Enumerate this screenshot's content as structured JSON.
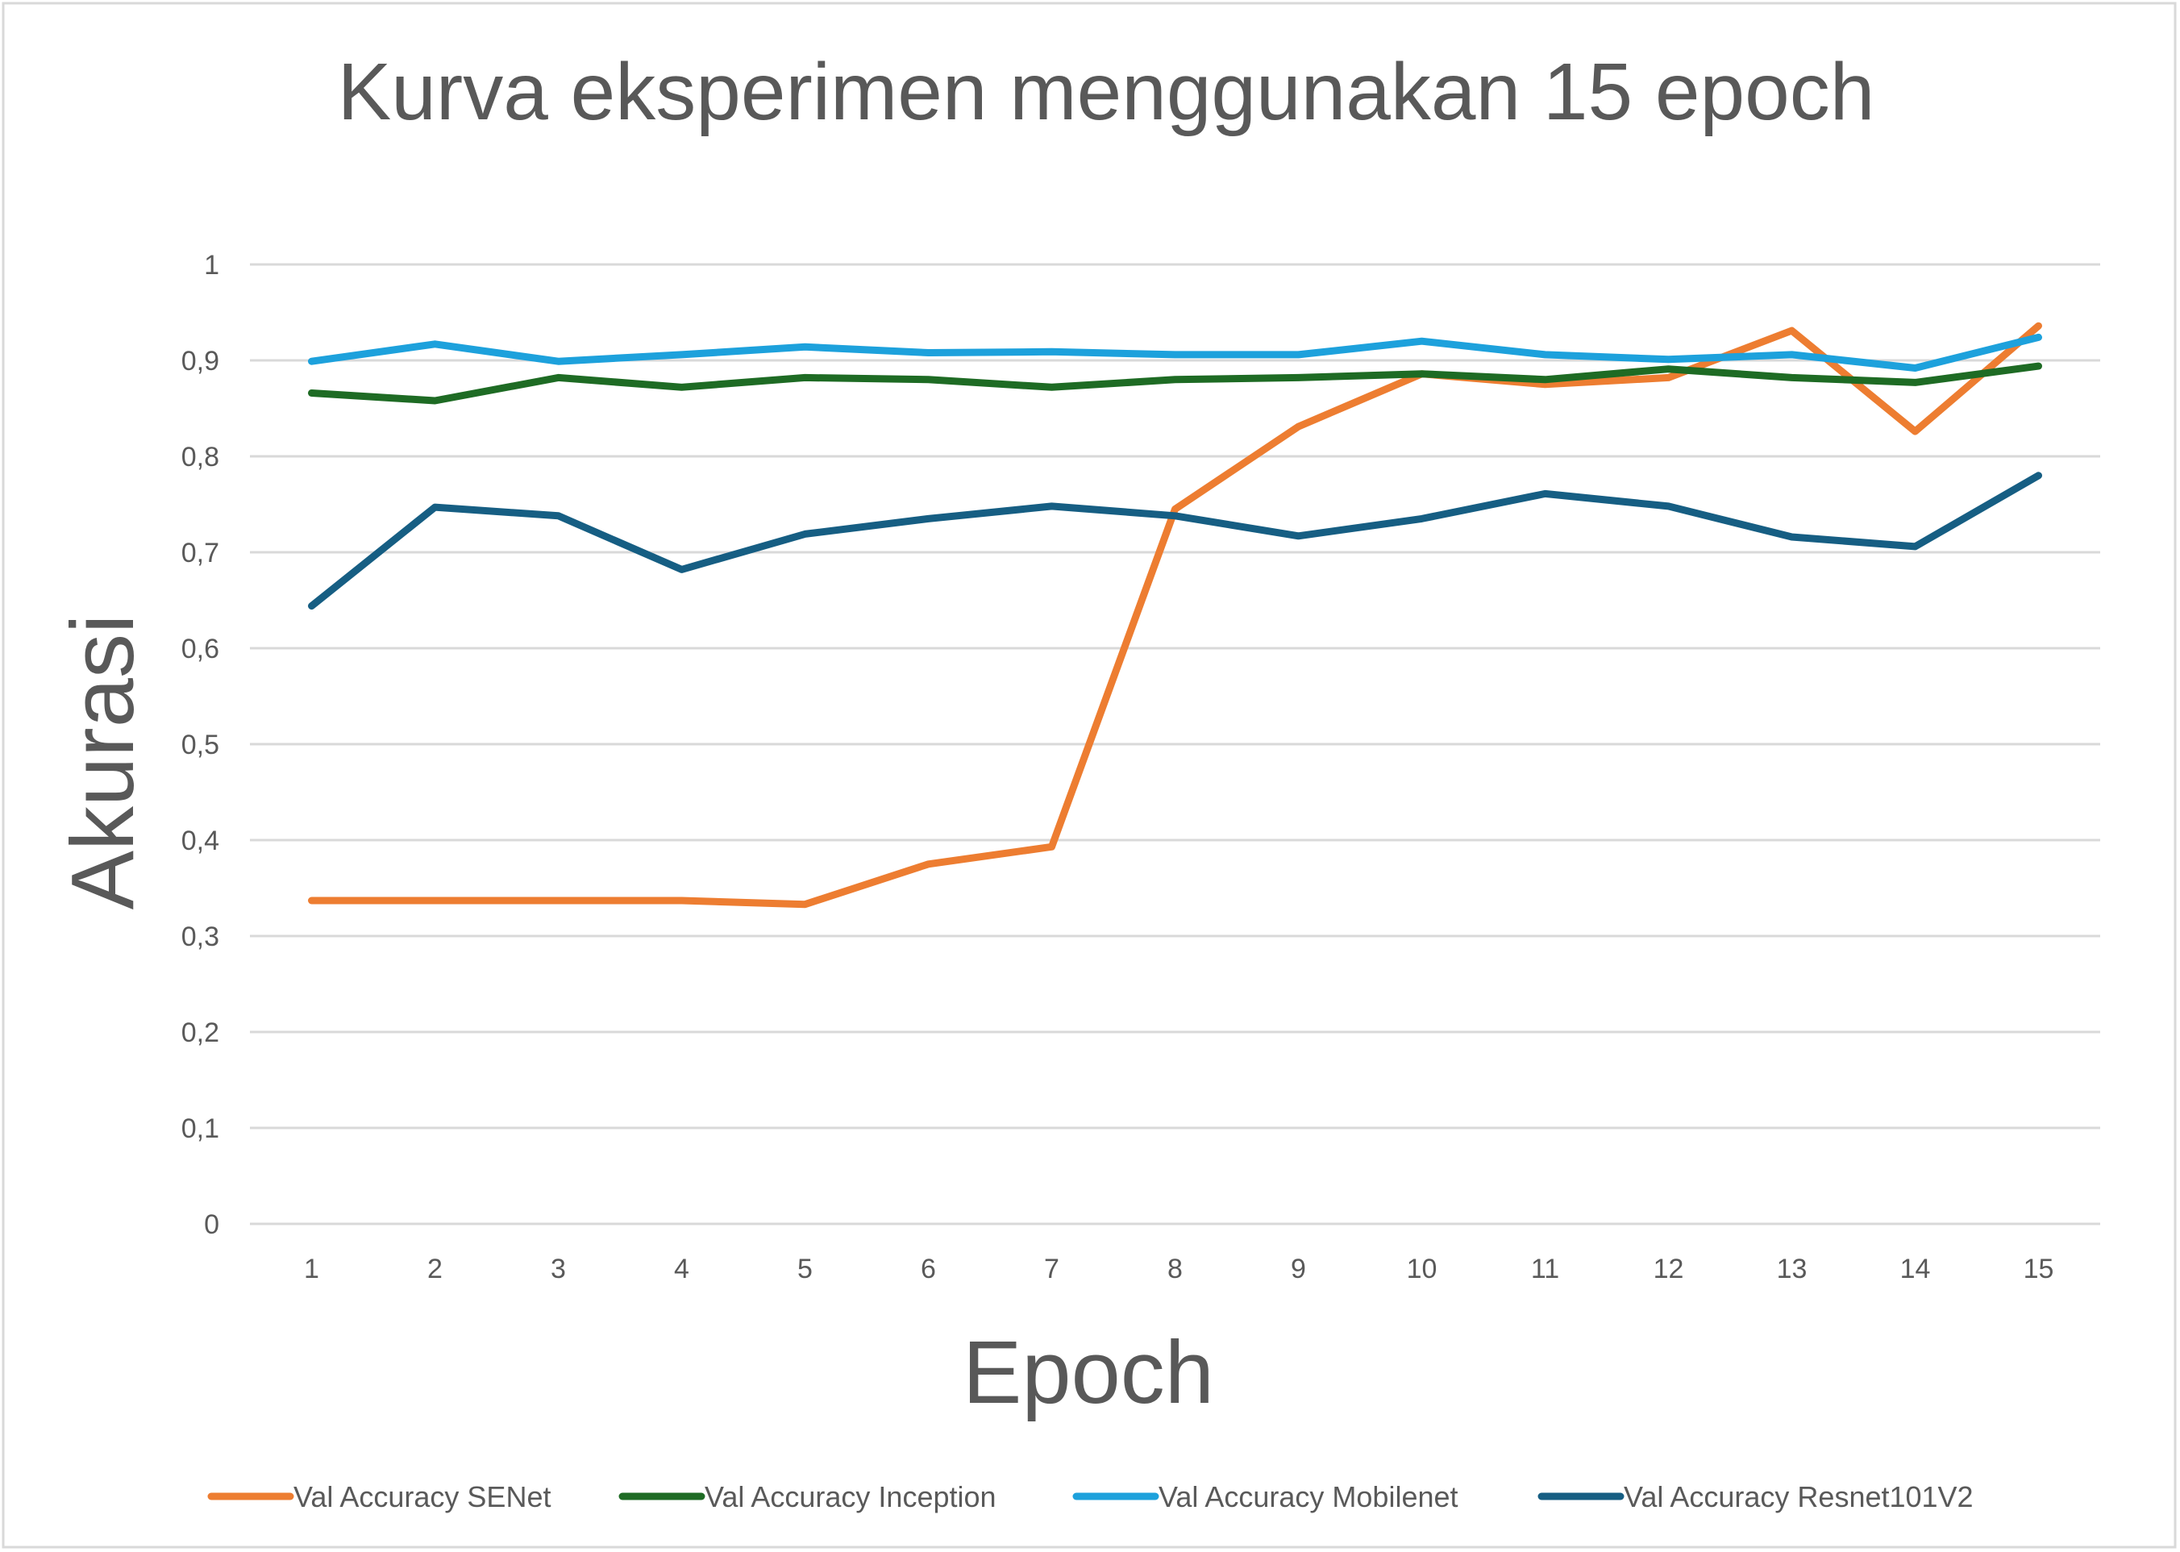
{
  "chart_data": {
    "type": "line",
    "title": "Kurva eksperimen menggunakan 15 epoch",
    "xlabel": "Epoch",
    "ylabel": "Akurasi",
    "categories": [
      "1",
      "2",
      "3",
      "4",
      "5",
      "6",
      "7",
      "8",
      "9",
      "10",
      "11",
      "12",
      "13",
      "14",
      "15"
    ],
    "ylim": [
      0,
      1
    ],
    "yticks": [
      "0",
      "0,1",
      "0,2",
      "0,3",
      "0,4",
      "0,5",
      "0,6",
      "0,7",
      "0,8",
      "0,9",
      "1"
    ],
    "grid": true,
    "legend_position": "bottom",
    "series": [
      {
        "name": "Val Accuracy SENet",
        "color": "#ED7D31",
        "values": [
          0.337,
          0.337,
          0.337,
          0.337,
          0.333,
          0.375,
          0.393,
          0.745,
          0.831,
          0.886,
          0.875,
          0.882,
          0.931,
          0.826,
          0.936
        ]
      },
      {
        "name": "Val Accuracy Inception",
        "color": "#1E6B24",
        "values": [
          0.866,
          0.858,
          0.882,
          0.872,
          0.882,
          0.88,
          0.872,
          0.88,
          0.882,
          0.886,
          0.88,
          0.891,
          0.882,
          0.877,
          0.894
        ]
      },
      {
        "name": "Val Accuracy Mobilenet",
        "color": "#1DA1DC",
        "values": [
          0.899,
          0.917,
          0.899,
          0.906,
          0.914,
          0.908,
          0.909,
          0.906,
          0.906,
          0.92,
          0.906,
          0.901,
          0.906,
          0.892,
          0.924
        ]
      },
      {
        "name": "Val Accuracy Resnet101V2",
        "color": "#165E83",
        "values": [
          0.644,
          0.747,
          0.738,
          0.682,
          0.719,
          0.735,
          0.748,
          0.738,
          0.717,
          0.735,
          0.761,
          0.748,
          0.716,
          0.706,
          0.78
        ]
      }
    ]
  }
}
